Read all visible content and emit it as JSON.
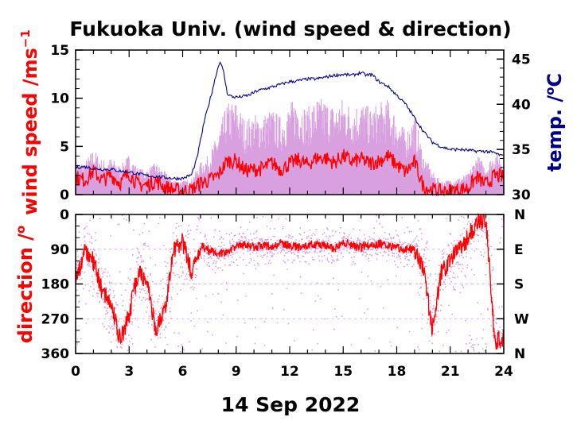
{
  "chart_data": [
    {
      "type": "line",
      "title": "Fukuoka Univ. (wind speed & direction)",
      "ylabel": "wind speed /ms",
      "ylabel_superscript": "−1",
      "y2label": "temp. /",
      "y2label_superscript": "o",
      "y2label_suffix": "C",
      "xlim": [
        0,
        24
      ],
      "ylim": [
        0,
        15
      ],
      "y2lim": [
        30,
        46
      ],
      "x_ticks": [
        "0",
        "3",
        "6",
        "9",
        "12",
        "15",
        "18",
        "21",
        "24"
      ],
      "y_ticks": [
        "0",
        "5",
        "10",
        "15"
      ],
      "y2_ticks": [
        "30",
        "35",
        "40",
        "45"
      ],
      "colors": {
        "wind_mean": "#ff0000",
        "wind_gust": "#d9a0e0",
        "temperature": "#00008b"
      },
      "series": [
        {
          "role": "wind_mean",
          "x": [
            0,
            0.5,
            1,
            1.5,
            2,
            2.5,
            3,
            3.5,
            4,
            4.5,
            5,
            5.5,
            6,
            6.5,
            7,
            7.5,
            8,
            8.5,
            9,
            9.5,
            10,
            10.5,
            11,
            11.5,
            12,
            12.5,
            13,
            13.5,
            14,
            14.5,
            15,
            15.5,
            16,
            16.5,
            17,
            17.5,
            18,
            18.5,
            19,
            19.5,
            20,
            20.5,
            21,
            21.5,
            22,
            22.5,
            23,
            23.5,
            24
          ],
          "values": [
            1.8,
            1.5,
            2.4,
            1.5,
            2.0,
            1.2,
            2.2,
            1.0,
            1.0,
            1.4,
            0.8,
            0.5,
            0.4,
            0.5,
            1.2,
            1.5,
            2.0,
            3.5,
            3.5,
            2.5,
            2.6,
            2.7,
            3.3,
            2.6,
            3.2,
            3.6,
            3.1,
            3.8,
            3.8,
            3.3,
            4.0,
            3.4,
            3.7,
            3.2,
            3.5,
            4.0,
            3.1,
            2.3,
            3.4,
            0.8,
            0.5,
            0.3,
            0.4,
            0.5,
            0.7,
            1.8,
            1.0,
            2.0,
            1.8
          ]
        },
        {
          "role": "wind_gust",
          "x": [
            0,
            0.5,
            1,
            1.5,
            2,
            2.5,
            3,
            3.5,
            4,
            4.5,
            5,
            5.5,
            6,
            6.5,
            7,
            7.5,
            8,
            8.5,
            9,
            9.5,
            10,
            10.5,
            11,
            11.5,
            12,
            12.5,
            13,
            13.5,
            14,
            14.5,
            15,
            15.5,
            16,
            16.5,
            17,
            17.5,
            18,
            18.5,
            19,
            19.5,
            20,
            20.5,
            21,
            21.5,
            22,
            22.5,
            23,
            23.5,
            24
          ],
          "values": [
            3.0,
            2.8,
            4.0,
            3.0,
            3.2,
            2.5,
            3.5,
            2.3,
            2.2,
            2.8,
            2.0,
            1.3,
            1.2,
            1.4,
            2.8,
            3.5,
            5.5,
            8.0,
            8.2,
            6.5,
            7.0,
            7.0,
            7.5,
            6.8,
            8.0,
            8.5,
            7.5,
            8.5,
            8.3,
            7.8,
            8.5,
            7.8,
            8.2,
            7.5,
            8.0,
            8.3,
            7.0,
            5.5,
            7.0,
            3.5,
            2.0,
            1.2,
            1.3,
            1.5,
            1.8,
            3.5,
            2.5,
            3.8,
            3.3
          ]
        },
        {
          "role": "temperature",
          "axis": "right",
          "x": [
            0,
            0.5,
            1,
            1.5,
            2,
            2.5,
            3,
            3.5,
            4,
            4.5,
            5,
            5.5,
            6,
            6.5,
            6.8,
            7.2,
            7.6,
            7.9,
            8.1,
            8.3,
            8.5,
            8.8,
            9.2,
            9.7,
            10.2,
            10.8,
            11.5,
            12,
            12.5,
            13,
            13.5,
            14,
            14.5,
            15,
            15.5,
            16,
            16.3,
            16.6,
            17,
            17.5,
            18,
            18.5,
            19,
            19.5,
            20,
            20.5,
            21,
            21.5,
            22,
            22.5,
            23,
            23.5,
            24
          ],
          "values": [
            33.0,
            33.1,
            32.9,
            32.8,
            32.8,
            32.6,
            32.5,
            32.3,
            32.1,
            32.0,
            31.9,
            31.8,
            31.8,
            32.2,
            34.0,
            38.0,
            41.0,
            43.5,
            44.8,
            43.5,
            41.2,
            40.8,
            40.8,
            41.0,
            41.5,
            41.8,
            42.2,
            42.5,
            42.6,
            42.8,
            42.8,
            43.0,
            43.2,
            43.3,
            43.2,
            43.5,
            43.2,
            43.3,
            42.5,
            42.0,
            41.0,
            40.0,
            38.5,
            37.0,
            35.8,
            35.3,
            35.0,
            35.0,
            34.9,
            34.8,
            34.8,
            34.6,
            34.2
          ]
        }
      ]
    },
    {
      "type": "scatter",
      "ylabel": "direction /",
      "ylabel_superscript": "o",
      "xlim": [
        0,
        24
      ],
      "ylim": [
        0,
        360
      ],
      "y_inverted": true,
      "x_ticks": [
        "0",
        "3",
        "6",
        "9",
        "12",
        "15",
        "18",
        "21",
        "24"
      ],
      "y_ticks": [
        "0",
        "90",
        "180",
        "270",
        "360"
      ],
      "y2_ticks": [
        "N",
        "E",
        "S",
        "W",
        "N"
      ],
      "colors": {
        "direction_mean": "#ff0000",
        "direction_samples": "#d9a0e0"
      },
      "series": [
        {
          "role": "direction_mean",
          "x": [
            0,
            0.5,
            1,
            1.5,
            2,
            2.5,
            3,
            3.5,
            4,
            4.5,
            5,
            5.5,
            6,
            6.5,
            7,
            7.5,
            8,
            8.5,
            9,
            9.5,
            10,
            10.5,
            11,
            11.5,
            12,
            12.5,
            13,
            13.5,
            14,
            14.5,
            15,
            15.5,
            16,
            16.5,
            17,
            17.5,
            18,
            18.5,
            19,
            19.5,
            20,
            20.5,
            21,
            21.5,
            22,
            22.5,
            23,
            23.5,
            24
          ],
          "values": [
            170,
            100,
            120,
            200,
            230,
            330,
            260,
            150,
            180,
            300,
            250,
            90,
            70,
            150,
            80,
            95,
            100,
            100,
            80,
            75,
            85,
            80,
            85,
            75,
            80,
            85,
            80,
            75,
            80,
            90,
            70,
            80,
            85,
            80,
            75,
            80,
            85,
            90,
            90,
            140,
            300,
            150,
            120,
            90,
            60,
            20,
            10,
            330,
            320
          ]
        }
      ]
    },
    {
      "xlabel": "14 Sep 2022"
    }
  ]
}
